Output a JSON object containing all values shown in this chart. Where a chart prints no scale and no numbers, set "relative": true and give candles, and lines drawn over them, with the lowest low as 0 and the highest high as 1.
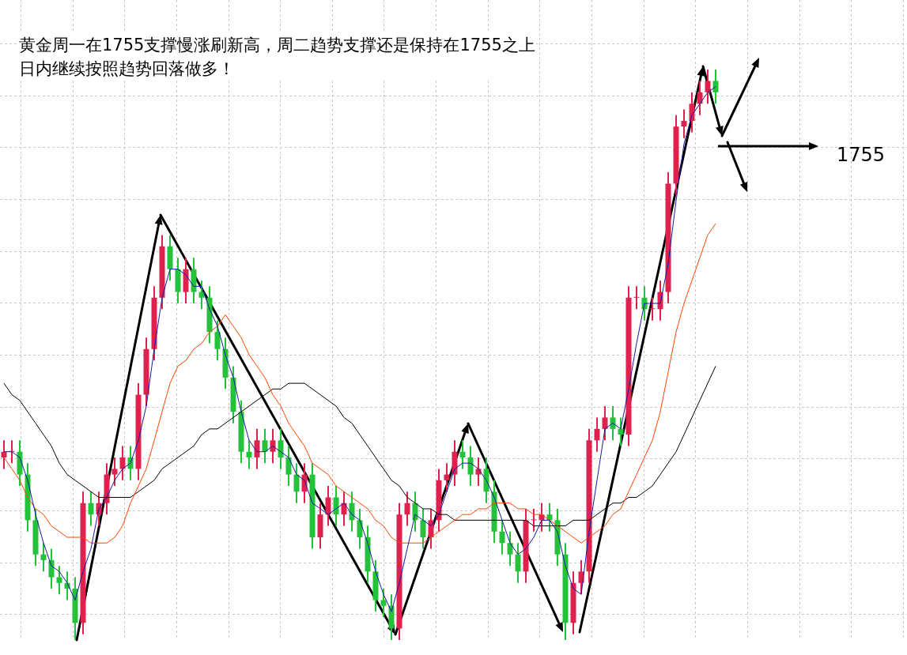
{
  "chart_data": {
    "type": "candlestick",
    "relative": true,
    "grid": true,
    "legend": false,
    "tick_labels": false,
    "title": "黄金周一在1755支撑慢涨刷新高，周二趋势支撑还是保持在1755之上",
    "subtitle": "日内继续按照趋势回落做多！",
    "annotations": [
      "1755"
    ],
    "categories": [
      null,
      null,
      null,
      null,
      null,
      null,
      null,
      null,
      null,
      null,
      null,
      null,
      null,
      null,
      null,
      null,
      null,
      null,
      null,
      null,
      null,
      null,
      null,
      null,
      null,
      null,
      null,
      null,
      null,
      null,
      null,
      null,
      null,
      null,
      null,
      null,
      null,
      null,
      null,
      null,
      null,
      null,
      null,
      null,
      null,
      null,
      null,
      null,
      null,
      null,
      null,
      null,
      null,
      null,
      null,
      null,
      null,
      null,
      null,
      null,
      null,
      null,
      null,
      null,
      null,
      null,
      null,
      null,
      null,
      null,
      null,
      null,
      null,
      null,
      null,
      null,
      null,
      null,
      null,
      null,
      null,
      null,
      null,
      null,
      null,
      null,
      null,
      null,
      null,
      null,
      null
    ],
    "ohlc": [
      [
        0.32,
        0.35,
        0.3,
        0.33
      ],
      [
        0.33,
        0.35,
        0.31,
        0.33
      ],
      [
        0.33,
        0.35,
        0.27,
        0.29
      ],
      [
        0.29,
        0.31,
        0.19,
        0.21
      ],
      [
        0.21,
        0.23,
        0.13,
        0.15
      ],
      [
        0.15,
        0.17,
        0.12,
        0.14
      ],
      [
        0.14,
        0.16,
        0.09,
        0.11
      ],
      [
        0.11,
        0.13,
        0.08,
        0.1
      ],
      [
        0.1,
        0.12,
        0.07,
        0.09
      ],
      [
        0.09,
        0.11,
        0,
        0.03
      ],
      [
        0.03,
        0.26,
        0.01,
        0.24
      ],
      [
        0.24,
        0.26,
        0.2,
        0.22
      ],
      [
        0.22,
        0.26,
        0.2,
        0.24
      ],
      [
        0.24,
        0.31,
        0.22,
        0.29
      ],
      [
        0.29,
        0.32,
        0.27,
        0.3
      ],
      [
        0.3,
        0.34,
        0.28,
        0.32
      ],
      [
        0.32,
        0.34,
        0.28,
        0.3
      ],
      [
        0.3,
        0.45,
        0.28,
        0.43
      ],
      [
        0.43,
        0.53,
        0.41,
        0.51
      ],
      [
        0.51,
        0.62,
        0.49,
        0.6
      ],
      [
        0.6,
        0.71,
        0.58,
        0.69
      ],
      [
        0.69,
        0.71,
        0.63,
        0.65
      ],
      [
        0.65,
        0.67,
        0.59,
        0.61
      ],
      [
        0.61,
        0.67,
        0.59,
        0.65
      ],
      [
        0.65,
        0.67,
        0.59,
        0.61
      ],
      [
        0.61,
        0.63,
        0.58,
        0.6
      ],
      [
        0.6,
        0.62,
        0.52,
        0.54
      ],
      [
        0.54,
        0.56,
        0.49,
        0.51
      ],
      [
        0.51,
        0.53,
        0.44,
        0.46
      ],
      [
        0.46,
        0.48,
        0.38,
        0.4
      ],
      [
        0.4,
        0.42,
        0.31,
        0.33
      ],
      [
        0.33,
        0.35,
        0.3,
        0.32
      ],
      [
        0.32,
        0.37,
        0.3,
        0.35
      ],
      [
        0.35,
        0.37,
        0.31,
        0.33
      ],
      [
        0.33,
        0.37,
        0.31,
        0.35
      ],
      [
        0.35,
        0.37,
        0.3,
        0.32
      ],
      [
        0.32,
        0.34,
        0.27,
        0.29
      ],
      [
        0.29,
        0.31,
        0.24,
        0.26
      ],
      [
        0.26,
        0.31,
        0.24,
        0.29
      ],
      [
        0.29,
        0.31,
        0.16,
        0.18
      ],
      [
        0.18,
        0.24,
        0.16,
        0.22
      ],
      [
        0.22,
        0.27,
        0.2,
        0.25
      ],
      [
        0.25,
        0.27,
        0.2,
        0.22
      ],
      [
        0.22,
        0.26,
        0.2,
        0.24
      ],
      [
        0.24,
        0.26,
        0.19,
        0.21
      ],
      [
        0.21,
        0.23,
        0.16,
        0.18
      ],
      [
        0.18,
        0.2,
        0.1,
        0.12
      ],
      [
        0.12,
        0.14,
        0.05,
        0.07
      ],
      [
        0.07,
        0.09,
        0.04,
        0.06
      ],
      [
        0.06,
        0.08,
        0,
        0.02
      ],
      [
        0.02,
        0.24,
        0,
        0.22
      ],
      [
        0.22,
        0.26,
        0.2,
        0.24
      ],
      [
        0.24,
        0.26,
        0.19,
        0.21
      ],
      [
        0.21,
        0.23,
        0.16,
        0.18
      ],
      [
        0.18,
        0.23,
        0.16,
        0.21
      ],
      [
        0.21,
        0.3,
        0.19,
        0.28
      ],
      [
        0.28,
        0.31,
        0.26,
        0.29
      ],
      [
        0.29,
        0.35,
        0.27,
        0.33
      ],
      [
        0.33,
        0.35,
        0.3,
        0.32
      ],
      [
        0.32,
        0.34,
        0.27,
        0.29
      ],
      [
        0.29,
        0.32,
        0.27,
        0.3
      ],
      [
        0.3,
        0.32,
        0.24,
        0.26
      ],
      [
        0.26,
        0.28,
        0.17,
        0.19
      ],
      [
        0.19,
        0.21,
        0.15,
        0.17
      ],
      [
        0.17,
        0.19,
        0.13,
        0.15
      ],
      [
        0.15,
        0.17,
        0.1,
        0.12
      ],
      [
        0.12,
        0.23,
        0.1,
        0.21
      ],
      [
        0.21,
        0.23,
        0.19,
        0.21
      ],
      [
        0.21,
        0.24,
        0.19,
        0.22
      ],
      [
        0.22,
        0.24,
        0.19,
        0.21
      ],
      [
        0.21,
        0.23,
        0.13,
        0.15
      ],
      [
        0.15,
        0.17,
        0,
        0.03
      ],
      [
        0.03,
        0.12,
        0.01,
        0.1
      ],
      [
        0.1,
        0.14,
        0.08,
        0.12
      ],
      [
        0.12,
        0.37,
        0.1,
        0.35
      ],
      [
        0.35,
        0.39,
        0.33,
        0.37
      ],
      [
        0.37,
        0.41,
        0.35,
        0.39
      ],
      [
        0.39,
        0.41,
        0.35,
        0.37
      ],
      [
        0.37,
        0.39,
        0.34,
        0.36
      ],
      [
        0.36,
        0.62,
        0.34,
        0.6
      ],
      [
        0.6,
        0.62,
        0.58,
        0.6
      ],
      [
        0.6,
        0.62,
        0.56,
        0.58
      ],
      [
        0.58,
        0.6,
        0.56,
        0.58
      ],
      [
        0.58,
        0.63,
        0.56,
        0.61
      ],
      [
        0.61,
        0.82,
        0.59,
        0.8
      ],
      [
        0.8,
        0.92,
        0.78,
        0.9
      ],
      [
        0.9,
        0.93,
        0.88,
        0.91
      ],
      [
        0.91,
        0.96,
        0.89,
        0.94
      ],
      [
        0.94,
        0.98,
        0.92,
        0.96
      ],
      [
        0.96,
        1,
        0.94,
        0.98
      ],
      [
        0.98,
        1,
        0.94,
        0.96
      ]
    ],
    "colors": [
      "#e0204f",
      "#e0204f",
      "#22c33a",
      "#22c33a",
      "#22c33a",
      "#22c33a",
      "#22c33a",
      "#22c33a",
      "#22c33a",
      "#22c33a",
      "#e0204f",
      "#22c33a",
      "#e0204f",
      "#e0204f",
      "#e0204f",
      "#e0204f",
      "#22c33a",
      "#e0204f",
      "#e0204f",
      "#e0204f",
      "#e0204f",
      "#22c33a",
      "#22c33a",
      "#e0204f",
      "#22c33a",
      "#22c33a",
      "#22c33a",
      "#22c33a",
      "#22c33a",
      "#22c33a",
      "#22c33a",
      "#22c33a",
      "#e0204f",
      "#22c33a",
      "#e0204f",
      "#22c33a",
      "#22c33a",
      "#22c33a",
      "#e0204f",
      "#22c33a",
      "#e0204f",
      "#e0204f",
      "#22c33a",
      "#e0204f",
      "#22c33a",
      "#22c33a",
      "#22c33a",
      "#22c33a",
      "#22c33a",
      "#22c33a",
      "#e0204f",
      "#e0204f",
      "#22c33a",
      "#22c33a",
      "#e0204f",
      "#e0204f",
      "#e0204f",
      "#e0204f",
      "#22c33a",
      "#22c33a",
      "#e0204f",
      "#22c33a",
      "#22c33a",
      "#22c33a",
      "#22c33a",
      "#22c33a",
      "#e0204f",
      "#e0204f",
      "#e0204f",
      "#22c33a",
      "#22c33a",
      "#22c33a",
      "#e0204f",
      "#e0204f",
      "#e0204f",
      "#e0204f",
      "#e0204f",
      "#22c33a",
      "#22c33a",
      "#e0204f",
      "#e0204f",
      "#22c33a",
      "#e0204f",
      "#e0204f",
      "#e0204f",
      "#e0204f",
      "#e0204f",
      "#e0204f",
      "#e0204f",
      "#e0204f",
      "#22c33a"
    ],
    "series": [
      {
        "type": "line",
        "color": "#1a1aa0",
        "values": [
          0.33,
          0.33,
          0.32,
          0.28,
          0.22,
          0.17,
          0.13,
          0.12,
          0.1,
          0.07,
          0.12,
          0.16,
          0.23,
          0.25,
          0.28,
          0.3,
          0.31,
          0.35,
          0.41,
          0.51,
          0.6,
          0.65,
          0.65,
          0.64,
          0.62,
          0.62,
          0.58,
          0.55,
          0.5,
          0.46,
          0.4,
          0.35,
          0.33,
          0.33,
          0.34,
          0.33,
          0.32,
          0.29,
          0.28,
          0.24,
          0.23,
          0.22,
          0.23,
          0.24,
          0.22,
          0.21,
          0.17,
          0.12,
          0.08,
          0.05,
          0.1,
          0.16,
          0.22,
          0.21,
          0.2,
          0.22,
          0.26,
          0.3,
          0.31,
          0.31,
          0.3,
          0.28,
          0.25,
          0.21,
          0.17,
          0.15,
          0.16,
          0.18,
          0.21,
          0.21,
          0.19,
          0.13,
          0.09,
          0.08,
          0.19,
          0.28,
          0.37,
          0.38,
          0.37,
          0.44,
          0.52,
          0.59,
          0.59,
          0.59,
          0.66,
          0.77,
          0.87,
          0.92,
          0.94,
          0.96,
          0.97
        ]
      },
      {
        "type": "line",
        "color": "#ff4500",
        "values": [
          0.32,
          0.3,
          0.28,
          0.25,
          0.23,
          0.22,
          0.2,
          0.19,
          0.18,
          0.18,
          0.18,
          0.17,
          0.17,
          0.17,
          0.18,
          0.2,
          0.24,
          0.27,
          0.3,
          0.35,
          0.4,
          0.45,
          0.48,
          0.49,
          0.51,
          0.52,
          0.54,
          0.55,
          0.57,
          0.55,
          0.53,
          0.5,
          0.48,
          0.46,
          0.43,
          0.41,
          0.38,
          0.36,
          0.34,
          0.31,
          0.3,
          0.29,
          0.27,
          0.26,
          0.25,
          0.24,
          0.23,
          0.21,
          0.2,
          0.18,
          0.17,
          0.17,
          0.17,
          0.17,
          0.18,
          0.19,
          0.2,
          0.21,
          0.22,
          0.22,
          0.23,
          0.23,
          0.24,
          0.24,
          0.24,
          0.23,
          0.23,
          0.22,
          0.22,
          0.21,
          0.2,
          0.19,
          0.18,
          0.17,
          0.18,
          0.19,
          0.2,
          0.22,
          0.23,
          0.26,
          0.29,
          0.32,
          0.35,
          0.4,
          0.47,
          0.54,
          0.59,
          0.63,
          0.67,
          0.71,
          0.73
        ]
      },
      {
        "type": "line",
        "color": "#000000",
        "values": [
          0.45,
          0.43,
          0.42,
          0.4,
          0.38,
          0.36,
          0.34,
          0.31,
          0.29,
          0.28,
          0.27,
          0.26,
          0.25,
          0.25,
          0.25,
          0.25,
          0.25,
          0.26,
          0.27,
          0.28,
          0.3,
          0.31,
          0.32,
          0.33,
          0.34,
          0.36,
          0.37,
          0.37,
          0.38,
          0.39,
          0.4,
          0.41,
          0.42,
          0.43,
          0.44,
          0.44,
          0.45,
          0.45,
          0.45,
          0.44,
          0.43,
          0.42,
          0.41,
          0.39,
          0.38,
          0.36,
          0.34,
          0.32,
          0.3,
          0.28,
          0.27,
          0.25,
          0.24,
          0.23,
          0.23,
          0.22,
          0.22,
          0.21,
          0.21,
          0.21,
          0.21,
          0.21,
          0.21,
          0.21,
          0.21,
          0.21,
          0.21,
          0.2,
          0.2,
          0.2,
          0.2,
          0.2,
          0.21,
          0.21,
          0.21,
          0.22,
          0.23,
          0.24,
          0.24,
          0.25,
          0.25,
          0.26,
          0.27,
          0.29,
          0.31,
          0.33,
          0.36,
          0.39,
          0.42,
          0.45,
          0.48
        ]
      }
    ]
  }
}
